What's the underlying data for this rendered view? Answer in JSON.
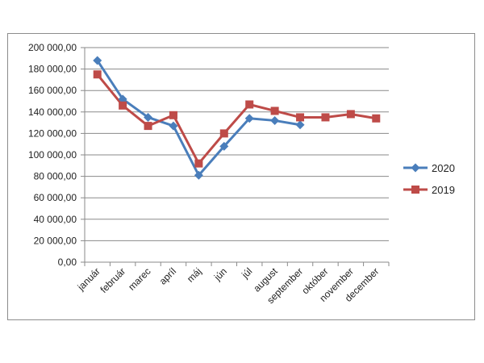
{
  "chart_data": {
    "type": "line",
    "title": "",
    "xlabel": "",
    "ylabel": "",
    "categories": [
      "január",
      "február",
      "marec",
      "apríl",
      "máj",
      "jún",
      "júl",
      "august",
      "september",
      "október",
      "november",
      "december"
    ],
    "y_ticks": [
      "0,00",
      "20 000,00",
      "40 000,00",
      "60 000,00",
      "80 000,00",
      "100 000,00",
      "120 000,00",
      "140 000,00",
      "160 000,00",
      "180 000,00",
      "200 000,00"
    ],
    "ylim": [
      0,
      200000
    ],
    "grid": true,
    "legend_position": "right",
    "series": [
      {
        "name": "2020",
        "color": "#4a7ebb",
        "marker": "diamond",
        "values": [
          188000,
          152000,
          135000,
          127000,
          81000,
          108000,
          134000,
          132000,
          128000,
          null,
          null,
          null
        ]
      },
      {
        "name": "2019",
        "color": "#be4b48",
        "marker": "square",
        "values": [
          175000,
          146000,
          127000,
          137000,
          92000,
          120000,
          147000,
          141000,
          135000,
          135000,
          138000,
          134000
        ]
      }
    ]
  }
}
